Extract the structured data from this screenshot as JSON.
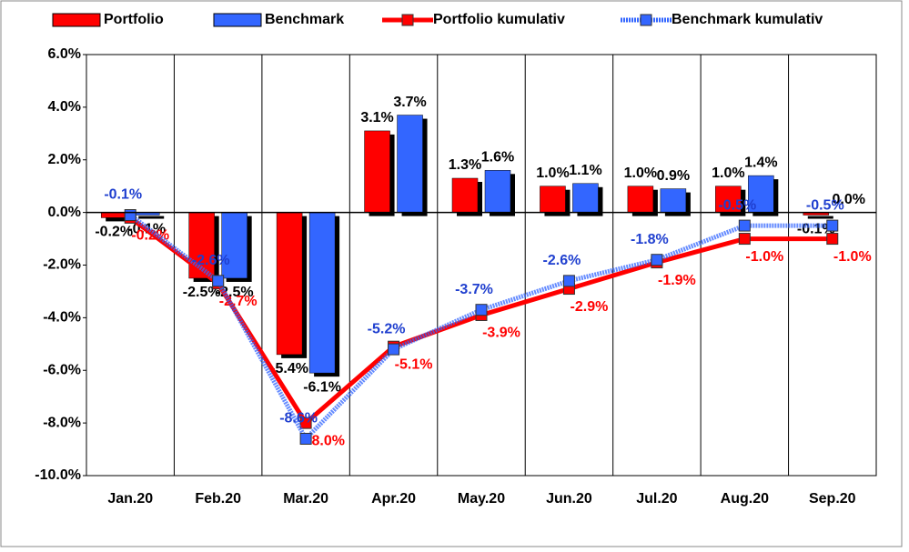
{
  "chart_data": {
    "type": "bar",
    "categories": [
      "Jan.20",
      "Feb.20",
      "Mar.20",
      "Apr.20",
      "May.20",
      "Jun.20",
      "Jul.20",
      "Aug.20",
      "Sep.20"
    ],
    "series": [
      {
        "name": "Portfolio",
        "type": "bar",
        "color": "#ff0000",
        "values": [
          -0.2,
          -2.5,
          -5.4,
          3.1,
          1.3,
          1.0,
          1.0,
          1.0,
          -0.1
        ],
        "value_labels": [
          "-0.2%",
          "-2.5%",
          "-5.4%",
          "3.1%",
          "1.3%",
          "1.0%",
          "1.0%",
          "1.0%",
          "-0.1%"
        ]
      },
      {
        "name": "Benchmark",
        "type": "bar",
        "color": "#3366ff",
        "values": [
          -0.1,
          -2.5,
          -6.1,
          3.7,
          1.6,
          1.1,
          0.9,
          1.4,
          0.0
        ],
        "value_labels": [
          "-0.1%",
          "-2.5%",
          "-6.1%",
          "3.7%",
          "1.6%",
          "1.1%",
          "0.9%",
          "1.4%",
          "0.0%"
        ]
      },
      {
        "name": "Portfolio kumulativ",
        "type": "line",
        "color": "#ff0000",
        "values": [
          -0.2,
          -2.7,
          -8.0,
          -5.1,
          -3.9,
          -2.9,
          -1.9,
          -1.0,
          -1.0
        ],
        "value_labels": [
          "-0.2%",
          "-2.7%",
          "-8.0%",
          "-5.1%",
          "-3.9%",
          "-2.9%",
          "-1.9%",
          "-1.0%",
          "-1.0%"
        ]
      },
      {
        "name": "Benchmark kumulativ",
        "type": "line",
        "color": "#3366ff",
        "values": [
          -0.1,
          -2.6,
          -8.6,
          -5.2,
          -3.7,
          -2.6,
          -1.8,
          -0.5,
          -0.5
        ],
        "value_labels": [
          "-0.1%",
          "-2.6%",
          "-8.6%",
          "-5.2%",
          "-3.7%",
          "-2.6%",
          "-1.8%",
          "-0.5%",
          "-0.5%"
        ]
      }
    ],
    "ylim": [
      -10,
      6
    ],
    "yticks": [
      {
        "value": -10,
        "label": "-10.0%"
      },
      {
        "value": -8,
        "label": "-8.0%"
      },
      {
        "value": -6,
        "label": "-6.0%"
      },
      {
        "value": -4,
        "label": "-4.0%"
      },
      {
        "value": -2,
        "label": "-2.0%"
      },
      {
        "value": 0,
        "label": "0.0%"
      },
      {
        "value": 2,
        "label": "2.0%"
      },
      {
        "value": 4,
        "label": "4.0%"
      },
      {
        "value": 6,
        "label": "6.0%"
      }
    ],
    "legend": "top"
  }
}
